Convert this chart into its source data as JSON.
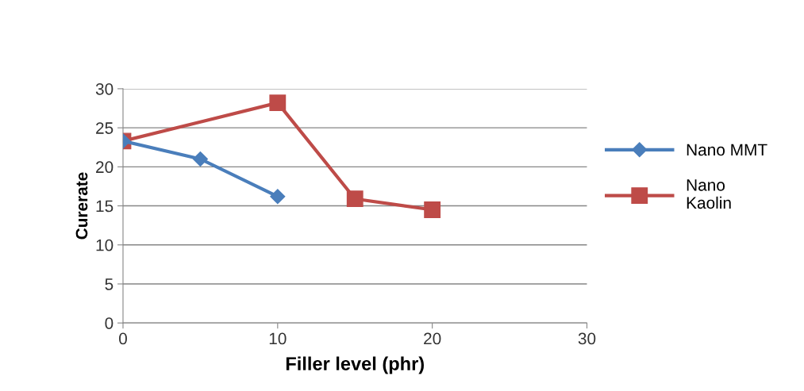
{
  "chart_data": {
    "type": "line",
    "xlabel": "Filler level (phr)",
    "ylabel": "Curerate",
    "xlim": [
      0,
      30
    ],
    "xticks": [
      0,
      10,
      20,
      30
    ],
    "ylim": [
      0,
      30
    ],
    "yticks": [
      0,
      5,
      10,
      15,
      20,
      25,
      30
    ],
    "grid": "y",
    "legend": "right",
    "series": [
      {
        "name": "Nano MMT",
        "color": "#4a7ebb",
        "marker": "diamond",
        "x": [
          0,
          5,
          10
        ],
        "values": [
          23.3,
          21,
          16.2
        ]
      },
      {
        "name": "Nano\nKaolin",
        "color": "#be4b48",
        "marker": "square",
        "x": [
          0,
          10,
          15,
          20
        ],
        "values": [
          23.3,
          28.2,
          15.9,
          14.5
        ]
      }
    ]
  }
}
